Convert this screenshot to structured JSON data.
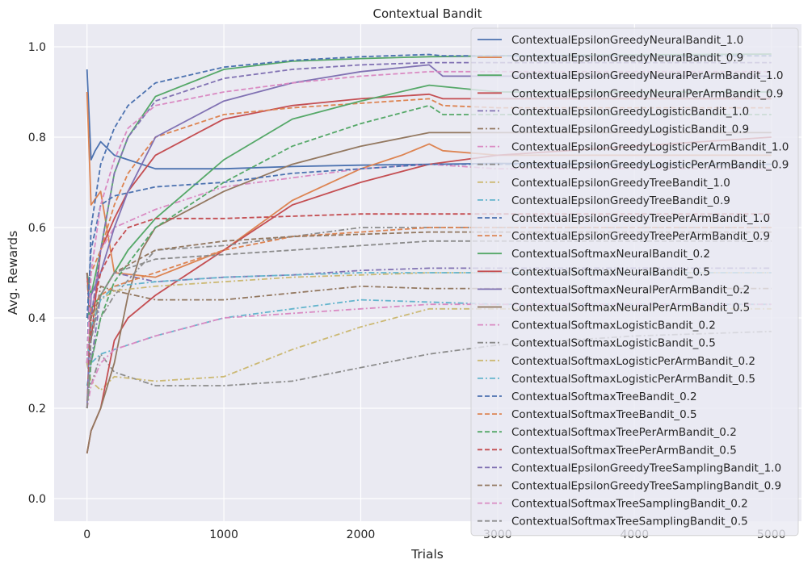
{
  "chart_data": {
    "type": "line",
    "title": "Contextual Bandit",
    "xlabel": "Trials",
    "ylabel": "Avg. Rewards",
    "xlim": [
      -240,
      5220
    ],
    "ylim": [
      -0.05,
      1.05
    ],
    "xticks": [
      0,
      1000,
      2000,
      3000,
      4000,
      5000
    ],
    "yticks": [
      0.0,
      0.2,
      0.4,
      0.6,
      0.8,
      1.0
    ],
    "xtick_labels": [
      "0",
      "1000",
      "2000",
      "3000",
      "4000",
      "5000"
    ],
    "ytick_labels": [
      "0.0",
      "0.2",
      "0.4",
      "0.6",
      "0.8",
      "1.0"
    ],
    "grid": true,
    "legend_position": "upper right",
    "series": [
      {
        "name": "ContextualEpsilonGreedyNeuralBandit_1.0",
        "color": "#4c72b0",
        "dash": "solid",
        "x": [
          0,
          30,
          60,
          100,
          200,
          300,
          500,
          1000,
          1500,
          2000,
          2500,
          3000,
          4000,
          5000
        ],
        "y": [
          0.95,
          0.75,
          0.77,
          0.79,
          0.76,
          0.75,
          0.73,
          0.73,
          0.735,
          0.738,
          0.74,
          0.742,
          0.74,
          0.74
        ]
      },
      {
        "name": "ContextualEpsilonGreedyNeuralBandit_0.9",
        "color": "#dd8452",
        "dash": "solid",
        "x": [
          0,
          30,
          100,
          200,
          500,
          1000,
          1500,
          2000,
          2300,
          2500,
          2600,
          3000,
          4000,
          5000
        ],
        "y": [
          0.9,
          0.65,
          0.68,
          0.5,
          0.49,
          0.55,
          0.66,
          0.73,
          0.76,
          0.785,
          0.77,
          0.76,
          0.76,
          0.76
        ]
      },
      {
        "name": "ContextualEpsilonGreedyNeuralPerArmBandit_1.0",
        "color": "#55a868",
        "dash": "solid",
        "x": [
          0,
          30,
          100,
          200,
          300,
          500,
          1000,
          1500,
          2000,
          2500,
          3000,
          4000,
          5000
        ],
        "y": [
          0.5,
          0.45,
          0.55,
          0.72,
          0.8,
          0.89,
          0.95,
          0.968,
          0.974,
          0.978,
          0.98,
          0.982,
          0.984
        ]
      },
      {
        "name": "ContextualEpsilonGreedyNeuralPerArmBandit_0.9",
        "color": "#c44e52",
        "dash": "solid",
        "x": [
          0,
          30,
          100,
          200,
          300,
          500,
          1000,
          1500,
          2000,
          2500,
          2600,
          3000,
          4000,
          5000
        ],
        "y": [
          0.5,
          0.35,
          0.55,
          0.62,
          0.68,
          0.76,
          0.84,
          0.87,
          0.885,
          0.895,
          0.885,
          0.885,
          0.885,
          0.885
        ]
      },
      {
        "name": "ContextualEpsilonGreedyLogisticBandit_1.0",
        "color": "#8172b3",
        "dash": "dashdot",
        "x": [
          0,
          30,
          100,
          200,
          500,
          1000,
          1500,
          2000,
          2500,
          3000,
          4000,
          5000
        ],
        "y": [
          0.5,
          0.3,
          0.45,
          0.5,
          0.48,
          0.49,
          0.495,
          0.505,
          0.51,
          0.51,
          0.51,
          0.51
        ]
      },
      {
        "name": "ContextualEpsilonGreedyLogisticBandit_0.9",
        "color": "#937860",
        "dash": "dashdot",
        "x": [
          0,
          30,
          100,
          200,
          500,
          1000,
          1500,
          2000,
          2500,
          3000,
          4000,
          5000
        ],
        "y": [
          0.5,
          0.35,
          0.47,
          0.46,
          0.44,
          0.44,
          0.455,
          0.47,
          0.465,
          0.465,
          0.465,
          0.465
        ]
      },
      {
        "name": "ContextualEpsilonGreedyLogisticPerArmBandit_1.0",
        "color": "#da8bc3",
        "dash": "dashdot",
        "x": [
          0,
          30,
          100,
          200,
          500,
          1000,
          1500,
          2000,
          2500,
          3000,
          4000,
          5000
        ],
        "y": [
          0.3,
          0.4,
          0.55,
          0.6,
          0.64,
          0.69,
          0.71,
          0.73,
          0.74,
          0.73,
          0.73,
          0.73
        ]
      },
      {
        "name": "ContextualEpsilonGreedyLogisticPerArmBandit_0.9",
        "color": "#8c8c8c",
        "dash": "dashdot",
        "x": [
          0,
          30,
          100,
          200,
          500,
          1000,
          1500,
          2000,
          2500,
          3000,
          4000,
          5000
        ],
        "y": [
          0.3,
          0.25,
          0.32,
          0.28,
          0.25,
          0.25,
          0.26,
          0.29,
          0.32,
          0.34,
          0.36,
          0.37
        ]
      },
      {
        "name": "ContextualEpsilonGreedyTreeBandit_1.0",
        "color": "#ccb974",
        "dash": "dashdot",
        "x": [
          0,
          30,
          100,
          200,
          500,
          1000,
          1500,
          2000,
          2500,
          3000,
          4000,
          5000
        ],
        "y": [
          0.3,
          0.26,
          0.24,
          0.27,
          0.26,
          0.27,
          0.33,
          0.38,
          0.42,
          0.42,
          0.42,
          0.42
        ]
      },
      {
        "name": "ContextualEpsilonGreedyTreeBandit_0.9",
        "color": "#64b5cd",
        "dash": "dashdot",
        "x": [
          0,
          30,
          100,
          200,
          500,
          1000,
          1500,
          2000,
          2500,
          3000,
          4000,
          5000
        ],
        "y": [
          0.25,
          0.3,
          0.32,
          0.33,
          0.36,
          0.4,
          0.42,
          0.44,
          0.435,
          0.43,
          0.43,
          0.43
        ]
      },
      {
        "name": "ContextualEpsilonGreedyTreePerArmBandit_1.0",
        "color": "#4c72b0",
        "dash": "dashed",
        "x": [
          0,
          30,
          100,
          200,
          300,
          500,
          1000,
          1500,
          2000,
          2500,
          2600,
          3000,
          4000,
          5000
        ],
        "y": [
          0.3,
          0.6,
          0.74,
          0.82,
          0.87,
          0.92,
          0.955,
          0.97,
          0.978,
          0.983,
          0.98,
          0.98,
          0.98,
          0.98
        ]
      },
      {
        "name": "ContextualEpsilonGreedyTreePerArmBandit_0.9",
        "color": "#dd8452",
        "dash": "dashed",
        "x": [
          0,
          30,
          100,
          200,
          300,
          500,
          1000,
          1500,
          2000,
          2500,
          2600,
          3000,
          4000,
          5000
        ],
        "y": [
          0.3,
          0.5,
          0.55,
          0.65,
          0.72,
          0.8,
          0.85,
          0.865,
          0.875,
          0.885,
          0.87,
          0.865,
          0.865,
          0.865
        ]
      },
      {
        "name": "ContextualSoftmaxNeuralBandit_0.2",
        "color": "#55a868",
        "dash": "solid",
        "x": [
          0,
          30,
          100,
          200,
          300,
          500,
          1000,
          1500,
          2000,
          2500,
          3000,
          4000,
          5000
        ],
        "y": [
          0.4,
          0.42,
          0.45,
          0.5,
          0.55,
          0.62,
          0.75,
          0.84,
          0.88,
          0.915,
          0.9,
          0.9,
          0.9
        ]
      },
      {
        "name": "ContextualSoftmaxNeuralBandit_0.5",
        "color": "#c44e52",
        "dash": "solid",
        "x": [
          0,
          30,
          100,
          200,
          300,
          500,
          1000,
          1500,
          2000,
          2500,
          3000,
          4000,
          5000
        ],
        "y": [
          0.1,
          0.15,
          0.2,
          0.35,
          0.4,
          0.45,
          0.55,
          0.65,
          0.7,
          0.74,
          0.76,
          0.78,
          0.8
        ]
      },
      {
        "name": "ContextualSoftmaxNeuralPerArmBandit_0.2",
        "color": "#8172b3",
        "dash": "solid",
        "x": [
          0,
          30,
          100,
          200,
          300,
          500,
          1000,
          1500,
          2000,
          2500,
          2600,
          3000,
          4000,
          5000
        ],
        "y": [
          0.2,
          0.45,
          0.5,
          0.6,
          0.68,
          0.8,
          0.88,
          0.92,
          0.945,
          0.96,
          0.935,
          0.935,
          0.935,
          0.935
        ]
      },
      {
        "name": "ContextualSoftmaxNeuralPerArmBandit_0.5",
        "color": "#937860",
        "dash": "solid",
        "x": [
          0,
          30,
          100,
          200,
          300,
          400,
          500,
          1000,
          1500,
          2000,
          2500,
          3000,
          4000,
          5000
        ],
        "y": [
          0.1,
          0.15,
          0.2,
          0.3,
          0.45,
          0.55,
          0.6,
          0.68,
          0.74,
          0.78,
          0.81,
          0.81,
          0.81,
          0.81
        ]
      },
      {
        "name": "ContextualSoftmaxLogisticBandit_0.2",
        "color": "#da8bc3",
        "dash": "dashdot",
        "x": [
          0,
          30,
          100,
          200,
          500,
          1000,
          1500,
          2000,
          2500,
          3000,
          4000,
          5000
        ],
        "y": [
          0.2,
          0.25,
          0.3,
          0.33,
          0.36,
          0.4,
          0.41,
          0.42,
          0.43,
          0.43,
          0.43,
          0.43
        ]
      },
      {
        "name": "ContextualSoftmaxLogisticBandit_0.5",
        "color": "#8c8c8c",
        "dash": "dashdot",
        "x": [
          0,
          30,
          100,
          200,
          500,
          1000,
          1500,
          2000,
          2500,
          3000,
          4000,
          5000
        ],
        "y": [
          0.2,
          0.3,
          0.4,
          0.45,
          0.55,
          0.56,
          0.58,
          0.6,
          0.6,
          0.6,
          0.6,
          0.6
        ]
      },
      {
        "name": "ContextualSoftmaxLogisticPerArmBandit_0.2",
        "color": "#ccb974",
        "dash": "dashdot",
        "x": [
          0,
          30,
          100,
          200,
          500,
          1000,
          1500,
          2000,
          2500,
          3000,
          4000,
          5000
        ],
        "y": [
          0.3,
          0.4,
          0.44,
          0.46,
          0.47,
          0.48,
          0.49,
          0.495,
          0.5,
          0.5,
          0.5,
          0.5
        ]
      },
      {
        "name": "ContextualSoftmaxLogisticPerArmBandit_0.5",
        "color": "#64b5cd",
        "dash": "dashdot",
        "x": [
          0,
          30,
          100,
          200,
          500,
          1000,
          1500,
          2000,
          2500,
          3000,
          4000,
          5000
        ],
        "y": [
          0.3,
          0.38,
          0.44,
          0.47,
          0.48,
          0.49,
          0.495,
          0.5,
          0.5,
          0.5,
          0.5,
          0.5
        ]
      },
      {
        "name": "ContextualSoftmaxTreeBandit_0.2",
        "color": "#4c72b0",
        "dash": "dashed",
        "x": [
          0,
          30,
          100,
          200,
          500,
          1000,
          1500,
          2000,
          2500,
          3000,
          4000,
          5000
        ],
        "y": [
          0.4,
          0.55,
          0.65,
          0.67,
          0.69,
          0.7,
          0.72,
          0.73,
          0.74,
          0.74,
          0.74,
          0.74
        ]
      },
      {
        "name": "ContextualSoftmaxTreeBandit_0.5",
        "color": "#dd8452",
        "dash": "dashed",
        "x": [
          0,
          30,
          100,
          200,
          500,
          1000,
          1500,
          2000,
          2500,
          3000,
          4000,
          5000
        ],
        "y": [
          0.3,
          0.42,
          0.45,
          0.47,
          0.5,
          0.55,
          0.58,
          0.59,
          0.6,
          0.6,
          0.6,
          0.6
        ]
      },
      {
        "name": "ContextualSoftmaxTreePerArmBandit_0.2",
        "color": "#55a868",
        "dash": "dashed",
        "x": [
          0,
          30,
          100,
          200,
          500,
          1000,
          1500,
          2000,
          2500,
          2600,
          3000,
          4000,
          5000
        ],
        "y": [
          0.2,
          0.3,
          0.4,
          0.48,
          0.6,
          0.7,
          0.78,
          0.83,
          0.87,
          0.85,
          0.85,
          0.85,
          0.85
        ]
      },
      {
        "name": "ContextualSoftmaxTreePerArmBandit_0.5",
        "color": "#c44e52",
        "dash": "dashed",
        "x": [
          0,
          30,
          100,
          200,
          300,
          500,
          1000,
          1500,
          2000,
          2500,
          3000,
          4000,
          5000
        ],
        "y": [
          0.2,
          0.4,
          0.5,
          0.56,
          0.6,
          0.62,
          0.62,
          0.625,
          0.63,
          0.63,
          0.63,
          0.63,
          0.63
        ]
      },
      {
        "name": "ContextualEpsilonGreedyTreeSamplingBandit_1.0",
        "color": "#8172b3",
        "dash": "dashed",
        "x": [
          0,
          30,
          100,
          200,
          300,
          500,
          1000,
          1500,
          2000,
          2500,
          3000,
          4000,
          5000
        ],
        "y": [
          0.3,
          0.4,
          0.55,
          0.72,
          0.8,
          0.88,
          0.93,
          0.95,
          0.96,
          0.965,
          0.965,
          0.965,
          0.965
        ]
      },
      {
        "name": "ContextualEpsilonGreedyTreeSamplingBandit_0.9",
        "color": "#937860",
        "dash": "dashed",
        "x": [
          0,
          30,
          100,
          200,
          500,
          1000,
          1500,
          2000,
          2500,
          3000,
          4000,
          5000
        ],
        "y": [
          0.3,
          0.4,
          0.45,
          0.5,
          0.55,
          0.57,
          0.58,
          0.585,
          0.59,
          0.59,
          0.59,
          0.59
        ]
      },
      {
        "name": "ContextualSoftmaxTreeSamplingBandit_0.2",
        "color": "#da8bc3",
        "dash": "dashed",
        "x": [
          0,
          30,
          100,
          200,
          300,
          500,
          1000,
          1500,
          2000,
          2500,
          3000,
          4000,
          5000
        ],
        "y": [
          0.3,
          0.5,
          0.65,
          0.75,
          0.82,
          0.87,
          0.9,
          0.92,
          0.935,
          0.945,
          0.945,
          0.945,
          0.945
        ]
      },
      {
        "name": "ContextualSoftmaxTreeSamplingBandit_0.5",
        "color": "#8c8c8c",
        "dash": "dashed",
        "x": [
          0,
          30,
          100,
          200,
          500,
          1000,
          1500,
          2000,
          2500,
          3000,
          4000,
          5000
        ],
        "y": [
          0.2,
          0.35,
          0.45,
          0.5,
          0.53,
          0.54,
          0.55,
          0.56,
          0.57,
          0.57,
          0.57,
          0.57
        ]
      }
    ]
  }
}
